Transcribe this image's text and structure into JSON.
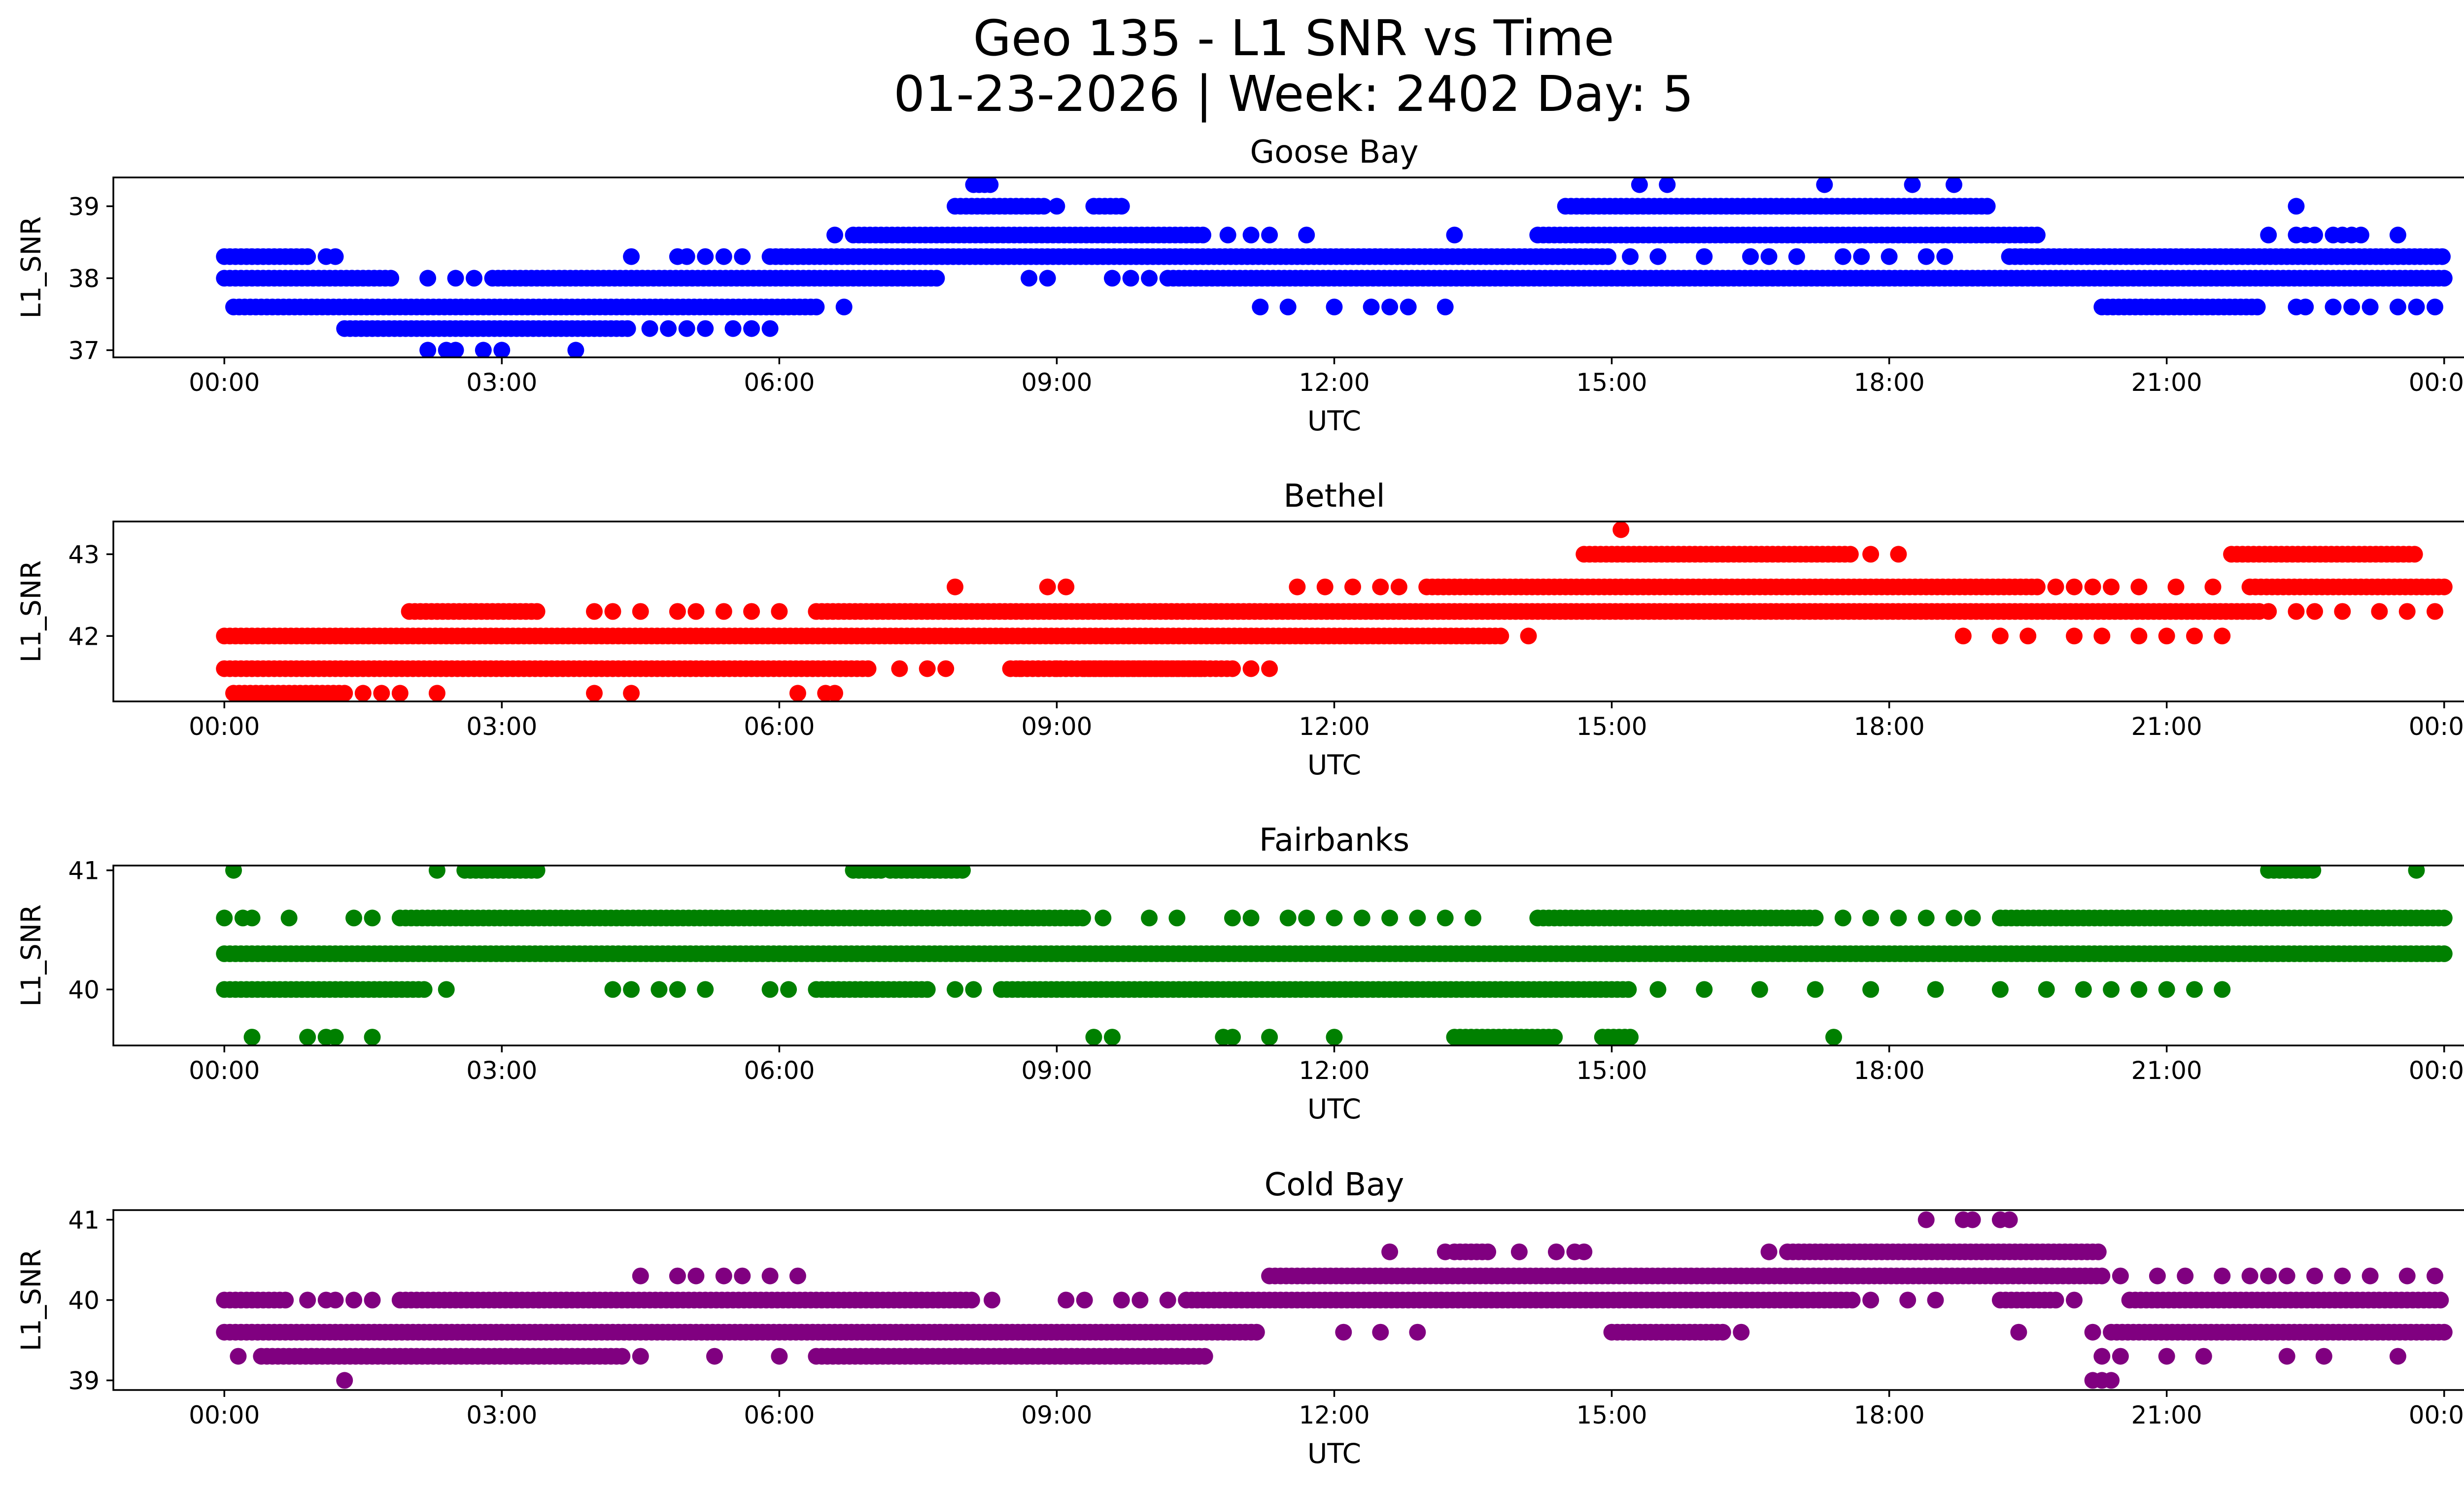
{
  "figure": {
    "title_line1": "Geo 135 - L1 SNR vs Time",
    "title_line2": "01-23-2026 | Week: 2402 Day: 5"
  },
  "chart_data": [
    {
      "type": "scatter",
      "title": "Goose Bay",
      "xlabel": "UTC",
      "ylabel": "L1_SNR",
      "color": "#0000ff",
      "xlim": [
        -1.2,
        25.2
      ],
      "ylim": [
        36.9,
        39.4
      ],
      "xticks": [
        0,
        3,
        6,
        9,
        12,
        15,
        18,
        21,
        24
      ],
      "xtick_labels": [
        "00:00",
        "03:00",
        "06:00",
        "09:00",
        "12:00",
        "15:00",
        "18:00",
        "21:00",
        "00:00"
      ],
      "yticks": [
        37,
        38,
        39
      ],
      "yticks_labels": [
        "37",
        "38",
        "39"
      ],
      "levels": [
        {
          "y": 39.3,
          "runs": [
            [
              8.1,
              8.3
            ]
          ],
          "points": [
            15.3,
            15.6,
            17.3,
            18.25,
            18.7
          ]
        },
        {
          "y": 39.0,
          "runs": [
            [
              7.9,
              8.9
            ],
            [
              9.4,
              9.7
            ],
            [
              14.5,
              19.1
            ]
          ],
          "points": [
            9.0,
            22.4
          ]
        },
        {
          "y": 38.6,
          "runs": [
            [
              6.8,
              10.6
            ],
            [
              14.2,
              19.6
            ]
          ],
          "points": [
            6.6,
            10.85,
            11.1,
            11.3,
            11.7,
            13.3,
            22.1,
            22.4,
            22.5,
            22.6,
            22.8,
            22.9,
            23.0,
            23.1,
            23.5
          ]
        },
        {
          "y": 38.3,
          "runs": [
            [
              0.0,
              0.9
            ],
            [
              5.9,
              15.0
            ],
            [
              19.3,
              24.0
            ]
          ],
          "points": [
            1.1,
            1.2,
            4.4,
            4.9,
            5.0,
            5.2,
            5.4,
            5.6,
            15.2,
            15.5,
            16.0,
            16.5,
            16.7,
            17.0,
            17.5,
            17.7,
            18.0,
            18.4,
            18.6
          ]
        },
        {
          "y": 38.0,
          "runs": [
            [
              0.0,
              1.8
            ],
            [
              2.9,
              7.7
            ],
            [
              10.2,
              24.0
            ]
          ],
          "points": [
            2.2,
            2.5,
            2.7,
            8.7,
            8.9,
            9.6,
            9.8,
            10.0
          ]
        },
        {
          "y": 37.6,
          "runs": [
            [
              0.1,
              6.4
            ],
            [
              20.3,
              22.0
            ]
          ],
          "points": [
            6.7,
            11.2,
            11.5,
            12.0,
            12.4,
            12.6,
            12.8,
            13.2,
            22.4,
            22.5,
            22.8,
            23.0,
            23.2,
            23.5,
            23.7,
            23.9
          ]
        },
        {
          "y": 37.3,
          "runs": [
            [
              1.3,
              4.4
            ]
          ],
          "points": [
            4.6,
            4.8,
            5.0,
            5.2,
            5.5,
            5.7,
            5.9
          ]
        },
        {
          "y": 37.0,
          "runs": [],
          "points": [
            2.2,
            2.4,
            2.5,
            2.8,
            3.0,
            3.8
          ]
        }
      ]
    },
    {
      "type": "scatter",
      "title": "Bethel",
      "xlabel": "UTC",
      "ylabel": "L1_SNR",
      "color": "#ff0000",
      "xlim": [
        -1.2,
        25.2
      ],
      "ylim": [
        41.2,
        43.4
      ],
      "xticks": [
        0,
        3,
        6,
        9,
        12,
        15,
        18,
        21,
        24
      ],
      "xtick_labels": [
        "00:00",
        "03:00",
        "06:00",
        "09:00",
        "12:00",
        "15:00",
        "18:00",
        "21:00",
        "00:00"
      ],
      "yticks": [
        42,
        43
      ],
      "yticks_labels": [
        "42",
        "43"
      ],
      "levels": [
        {
          "y": 43.3,
          "runs": [],
          "points": [
            15.1
          ]
        },
        {
          "y": 43.0,
          "runs": [
            [
              14.7,
              17.6
            ],
            [
              21.7,
              23.7
            ]
          ],
          "points": [
            17.8,
            18.1
          ]
        },
        {
          "y": 42.6,
          "runs": [
            [
              13.0,
              19.6
            ],
            [
              21.9,
              24.0
            ]
          ],
          "points": [
            7.9,
            8.9,
            9.1,
            11.6,
            11.9,
            12.2,
            12.5,
            12.7,
            19.8,
            20.0,
            20.2,
            20.4,
            20.7,
            21.1,
            21.5
          ]
        },
        {
          "y": 42.3,
          "runs": [
            [
              2.0,
              3.4
            ],
            [
              6.4,
              22.0
            ]
          ],
          "points": [
            4.0,
            4.2,
            4.5,
            4.9,
            5.1,
            5.4,
            5.7,
            6.0,
            22.1,
            22.4,
            22.6,
            22.9,
            23.3,
            23.6,
            23.9
          ]
        },
        {
          "y": 42.0,
          "runs": [
            [
              0.0,
              13.8
            ]
          ],
          "points": [
            14.1,
            18.8,
            19.2,
            19.5,
            20.0,
            20.3,
            20.7,
            21.0,
            21.3,
            21.6
          ]
        },
        {
          "y": 41.6,
          "runs": [
            [
              0.0,
              7.0
            ],
            [
              8.5,
              10.9
            ],
            [
              9.3,
              10.6
            ]
          ],
          "points": [
            7.3,
            7.6,
            7.8,
            8.6,
            8.8,
            9.0,
            11.1,
            11.3
          ]
        },
        {
          "y": 41.3,
          "runs": [
            [
              0.1,
              1.3
            ]
          ],
          "points": [
            1.5,
            1.7,
            1.9,
            2.3,
            4.0,
            4.4,
            6.2,
            6.5,
            6.6
          ]
        }
      ]
    },
    {
      "type": "scatter",
      "title": "Fairbanks",
      "xlabel": "UTC",
      "ylabel": "L1_SNR",
      "color": "#008000",
      "xlim": [
        -1.2,
        25.2
      ],
      "ylim": [
        39.53,
        41.04
      ],
      "xticks": [
        0,
        3,
        6,
        9,
        12,
        15,
        18,
        21,
        24
      ],
      "xtick_labels": [
        "00:00",
        "03:00",
        "06:00",
        "09:00",
        "12:00",
        "15:00",
        "18:00",
        "21:00",
        "00:00"
      ],
      "yticks": [
        40,
        41
      ],
      "yticks_labels": [
        "40",
        "41"
      ],
      "levels": [
        {
          "y": 41.0,
          "runs": [
            [
              2.6,
              3.4
            ],
            [
              6.8,
              7.1
            ],
            [
              7.2,
              8.0
            ],
            [
              22.1,
              22.6
            ]
          ],
          "points": [
            0.1,
            2.3,
            23.7
          ]
        },
        {
          "y": 40.6,
          "runs": [
            [
              1.9,
              9.3
            ],
            [
              14.2,
              17.2
            ],
            [
              19.2,
              24.0
            ]
          ],
          "points": [
            0.0,
            0.2,
            0.3,
            0.7,
            1.4,
            1.6,
            9.5,
            10.0,
            10.3,
            10.9,
            11.1,
            11.5,
            11.7,
            12.0,
            12.3,
            12.6,
            12.9,
            13.2,
            13.5,
            17.5,
            17.8,
            18.1,
            18.4,
            18.7,
            18.9
          ]
        },
        {
          "y": 40.3,
          "runs": [
            [
              0.0,
              24.0
            ]
          ],
          "points": []
        },
        {
          "y": 40.0,
          "runs": [
            [
              0.0,
              2.2
            ],
            [
              8.4,
              15.2
            ],
            [
              6.4,
              7.6
            ]
          ],
          "points": [
            2.4,
            4.2,
            4.4,
            4.7,
            4.9,
            5.2,
            5.9,
            6.1,
            7.9,
            8.1,
            15.5,
            16.0,
            16.6,
            17.2,
            17.8,
            18.5,
            19.2,
            19.7,
            20.1,
            20.4,
            20.7,
            21.0,
            21.3,
            21.6
          ]
        },
        {
          "y": 39.6,
          "runs": [
            [
              13.3,
              14.4
            ],
            [
              14.9,
              15.2
            ]
          ],
          "points": [
            0.3,
            0.9,
            1.1,
            1.2,
            1.6,
            9.4,
            9.6,
            10.8,
            10.9,
            11.3,
            12.0,
            17.4
          ]
        }
      ]
    },
    {
      "type": "scatter",
      "title": "Cold Bay",
      "xlabel": "UTC",
      "ylabel": "L1_SNR",
      "color": "#800080",
      "xlim": [
        -1.2,
        25.2
      ],
      "ylim": [
        38.88,
        41.12
      ],
      "xticks": [
        0,
        3,
        6,
        9,
        12,
        15,
        18,
        21,
        24
      ],
      "xtick_labels": [
        "00:00",
        "03:00",
        "06:00",
        "09:00",
        "12:00",
        "15:00",
        "18:00",
        "21:00",
        "00:00"
      ],
      "yticks": [
        39,
        40,
        41
      ],
      "yticks_labels": [
        "39",
        "40",
        "41"
      ],
      "levels": [
        {
          "y": 41.0,
          "runs": [],
          "points": [
            18.4,
            18.8,
            18.9,
            19.2,
            19.3
          ]
        },
        {
          "y": 40.6,
          "runs": [
            [
              16.9,
              20.3
            ],
            [
              13.3,
              13.7
            ]
          ],
          "points": [
            12.6,
            13.2,
            14.0,
            14.4,
            14.6,
            14.7,
            16.7
          ]
        },
        {
          "y": 40.3,
          "runs": [
            [
              11.3,
              20.3
            ]
          ],
          "points": [
            4.5,
            4.9,
            5.1,
            5.4,
            5.6,
            5.9,
            6.2,
            20.5,
            20.9,
            21.2,
            21.6,
            21.9,
            22.1,
            22.3,
            22.6,
            22.9,
            23.2,
            23.6,
            23.9
          ]
        },
        {
          "y": 40.0,
          "runs": [
            [
              0.0,
              0.7
            ],
            [
              1.9,
              8.1
            ],
            [
              10.4,
              17.6
            ],
            [
              19.2,
              19.8
            ],
            [
              20.6,
              24.0
            ]
          ],
          "points": [
            0.9,
            1.1,
            1.2,
            1.4,
            1.6,
            3.4,
            3.7,
            4.0,
            8.3,
            9.1,
            9.3,
            9.7,
            9.9,
            10.2,
            17.8,
            18.2,
            18.5,
            20.0
          ]
        },
        {
          "y": 39.6,
          "runs": [
            [
              0.0,
              11.2
            ],
            [
              20.4,
              24.0
            ],
            [
              15.0,
              16.2
            ]
          ],
          "points": [
            12.1,
            12.5,
            12.9,
            16.4,
            19.4,
            20.2
          ]
        },
        {
          "y": 39.3,
          "runs": [
            [
              0.4,
              4.3
            ],
            [
              6.4,
              10.6
            ]
          ],
          "points": [
            0.15,
            4.5,
            5.3,
            6.0,
            20.3,
            20.5,
            21.0,
            21.4,
            22.3,
            22.7,
            23.5
          ]
        },
        {
          "y": 39.0,
          "runs": [],
          "points": [
            1.3,
            20.2,
            20.3,
            20.4
          ]
        }
      ]
    }
  ]
}
